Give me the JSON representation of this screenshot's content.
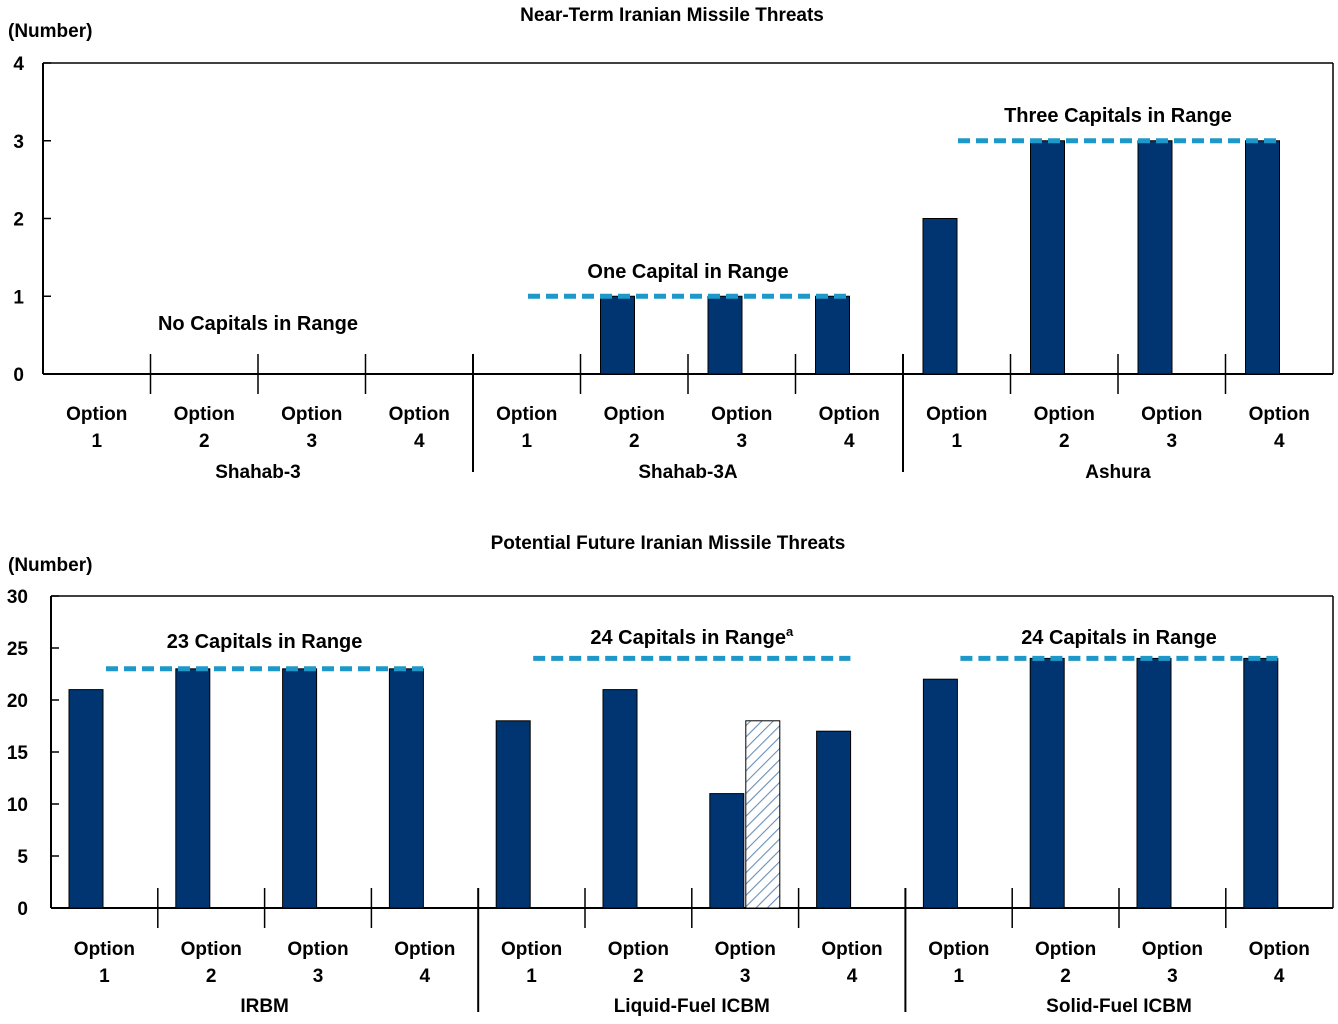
{
  "colors": {
    "bar": "#003571",
    "bar_stroke": "#000000",
    "threshold_line": "#1e98c8",
    "hatch": "#6b8fb5",
    "axis": "#000000"
  },
  "chart_data": [
    {
      "type": "bar",
      "title": "Near-Term Iranian Missile Threats",
      "ylabel": "(Number)",
      "ylim": [
        0,
        4
      ],
      "yticks": [
        0,
        1,
        2,
        3,
        4
      ],
      "grid": false,
      "group_labels": [
        "Shahab-3",
        "Shahab-3A",
        "Ashura"
      ],
      "categories": [
        [
          "Option",
          "1"
        ],
        [
          "Option",
          "2"
        ],
        [
          "Option",
          "3"
        ],
        [
          "Option",
          "4"
        ],
        [
          "Option",
          "1"
        ],
        [
          "Option",
          "2"
        ],
        [
          "Option",
          "3"
        ],
        [
          "Option",
          "4"
        ],
        [
          "Option",
          "1"
        ],
        [
          "Option",
          "2"
        ],
        [
          "Option",
          "3"
        ],
        [
          "Option",
          "4"
        ]
      ],
      "values": [
        0,
        0,
        0,
        0,
        0,
        1,
        1,
        1,
        2,
        3,
        3,
        3
      ],
      "hatched_values": [],
      "thresholds": [
        {
          "label": "No Capitals in Range",
          "value": null,
          "group": 0
        },
        {
          "label": "One Capital in Range",
          "value": 1,
          "group": 1
        },
        {
          "label": "Three Capitals in Range",
          "value": 3,
          "group": 2
        }
      ]
    },
    {
      "type": "bar",
      "title": "Potential Future Iranian Missile Threats",
      "ylabel": "(Number)",
      "ylim": [
        0,
        30
      ],
      "yticks": [
        0,
        5,
        10,
        15,
        20,
        25,
        30
      ],
      "grid": false,
      "group_labels": [
        "IRBM",
        "Liquid-Fuel ICBM",
        "Solid-Fuel ICBM"
      ],
      "categories": [
        [
          "Option",
          "1"
        ],
        [
          "Option",
          "2"
        ],
        [
          "Option",
          "3"
        ],
        [
          "Option",
          "4"
        ],
        [
          "Option",
          "1"
        ],
        [
          "Option",
          "2"
        ],
        [
          "Option",
          "3"
        ],
        [
          "Option",
          "4"
        ],
        [
          "Option",
          "1"
        ],
        [
          "Option",
          "2"
        ],
        [
          "Option",
          "3"
        ],
        [
          "Option",
          "4"
        ]
      ],
      "values": [
        21,
        23,
        23,
        23,
        18,
        21,
        11,
        17,
        22,
        24,
        24,
        24
      ],
      "hatched_values": [
        {
          "index": 6,
          "value": 18
        }
      ],
      "thresholds": [
        {
          "label": "23 Capitals in Range",
          "value": 23,
          "group": 0,
          "sup": ""
        },
        {
          "label": "24 Capitals in Range",
          "value": 24,
          "group": 1,
          "sup": "a"
        },
        {
          "label": "24 Capitals in Range",
          "value": 24,
          "group": 2,
          "sup": ""
        }
      ]
    }
  ]
}
